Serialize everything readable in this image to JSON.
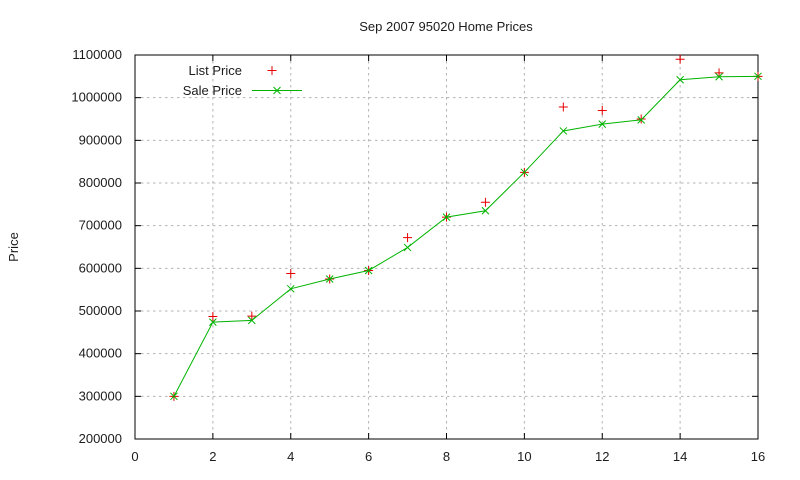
{
  "window": {
    "background": "#ffffff"
  },
  "chart_data": {
    "type": "line",
    "title": "Sep 2007 95020 Home Prices",
    "xlabel": "",
    "ylabel": "Price",
    "xlim": [
      0,
      16
    ],
    "ylim": [
      200000,
      1100000
    ],
    "x_ticks": [
      0,
      2,
      4,
      6,
      8,
      10,
      12,
      14,
      16
    ],
    "y_ticks": [
      200000,
      300000,
      400000,
      500000,
      600000,
      700000,
      800000,
      900000,
      1000000,
      1100000
    ],
    "grid": true,
    "legend_position": "top-left-inside",
    "x": [
      1,
      2,
      3,
      4,
      5,
      6,
      7,
      8,
      9,
      10,
      11,
      12,
      13,
      14,
      15,
      16
    ],
    "series": [
      {
        "name": "List Price",
        "color": "#e60000",
        "marker": "plus",
        "line": false,
        "values": [
          300000,
          487000,
          488000,
          588000,
          575000,
          595000,
          672000,
          720000,
          755000,
          825000,
          978000,
          970000,
          950000,
          1090000,
          1058000,
          1050000
        ]
      },
      {
        "name": "Sale Price",
        "color": "#00b400",
        "marker": "x",
        "line": true,
        "values": [
          300000,
          474000,
          478000,
          552000,
          575000,
          595000,
          649000,
          720000,
          735000,
          825000,
          922000,
          938000,
          948000,
          1042000,
          1049000,
          1050000
        ]
      }
    ],
    "axis_color": "#000000",
    "grid_color": "#b3b3b3",
    "text_color": "#1c1c1c"
  }
}
